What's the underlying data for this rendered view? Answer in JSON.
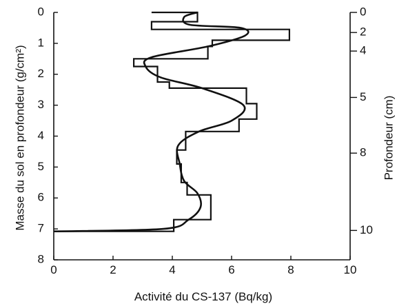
{
  "chart_data": {
    "type": "line",
    "xlabel": "Activité du CS-137 (Bq/kg)",
    "ylabel": "Masse du sol en profondeur (g/cm²)",
    "y2label": "Profondeur (cm)",
    "xlim": [
      0,
      10
    ],
    "ylim": [
      0,
      8
    ],
    "y_inverted": true,
    "x_ticks": [
      "0",
      "2",
      "4",
      "6",
      "8",
      "10"
    ],
    "y_ticks": [
      "0",
      "1",
      "2",
      "3",
      "4",
      "5",
      "6",
      "7",
      "8"
    ],
    "y2_ticks": [
      {
        "mass": 0,
        "label": "0"
      },
      {
        "mass": 0.65,
        "label": "2"
      },
      {
        "mass": 1.25,
        "label": "4"
      },
      {
        "mass": 2.75,
        "label": "5"
      },
      {
        "mass": 4.55,
        "label": "8"
      },
      {
        "mass": 7.05,
        "label": "10"
      }
    ],
    "grid": false,
    "series": [
      {
        "kind": "step",
        "points": [
          [
            3.3,
            0.0
          ],
          [
            4.85,
            0.0
          ],
          [
            4.85,
            0.3
          ],
          [
            3.3,
            0.3
          ],
          [
            3.3,
            0.55
          ],
          [
            7.95,
            0.55
          ],
          [
            7.95,
            0.9
          ],
          [
            5.35,
            0.9
          ],
          [
            5.35,
            1.1
          ],
          [
            5.2,
            1.1
          ],
          [
            5.2,
            1.5
          ],
          [
            2.7,
            1.5
          ],
          [
            2.7,
            1.75
          ],
          [
            3.5,
            1.75
          ],
          [
            3.5,
            2.25
          ],
          [
            3.9,
            2.25
          ],
          [
            3.9,
            2.45
          ],
          [
            6.5,
            2.45
          ],
          [
            6.5,
            2.95
          ],
          [
            6.85,
            2.95
          ],
          [
            6.85,
            3.45
          ],
          [
            6.25,
            3.45
          ],
          [
            6.25,
            3.85
          ],
          [
            4.45,
            3.85
          ],
          [
            4.45,
            4.45
          ],
          [
            4.15,
            4.45
          ],
          [
            4.15,
            4.9
          ],
          [
            4.3,
            4.9
          ],
          [
            4.3,
            5.5
          ],
          [
            4.5,
            5.5
          ],
          [
            4.5,
            5.9
          ],
          [
            5.3,
            5.9
          ],
          [
            5.3,
            6.7
          ],
          [
            4.05,
            6.7
          ],
          [
            4.05,
            7.08
          ],
          [
            0.0,
            7.08
          ]
        ]
      },
      {
        "kind": "smooth",
        "points": [
          [
            4.85,
            0.0
          ],
          [
            4.4,
            0.15
          ],
          [
            4.6,
            0.4
          ],
          [
            6.3,
            0.5
          ],
          [
            6.45,
            0.75
          ],
          [
            5.2,
            1.1
          ],
          [
            3.3,
            1.45
          ],
          [
            3.1,
            1.75
          ],
          [
            3.6,
            2.1
          ],
          [
            5.0,
            2.45
          ],
          [
            6.4,
            3.0
          ],
          [
            6.0,
            3.5
          ],
          [
            4.9,
            3.85
          ],
          [
            4.2,
            4.3
          ],
          [
            4.25,
            4.9
          ],
          [
            4.4,
            5.45
          ],
          [
            4.85,
            5.85
          ],
          [
            4.95,
            6.3
          ],
          [
            4.55,
            6.7
          ],
          [
            3.7,
            7.0
          ],
          [
            0.0,
            7.08
          ]
        ]
      }
    ]
  }
}
